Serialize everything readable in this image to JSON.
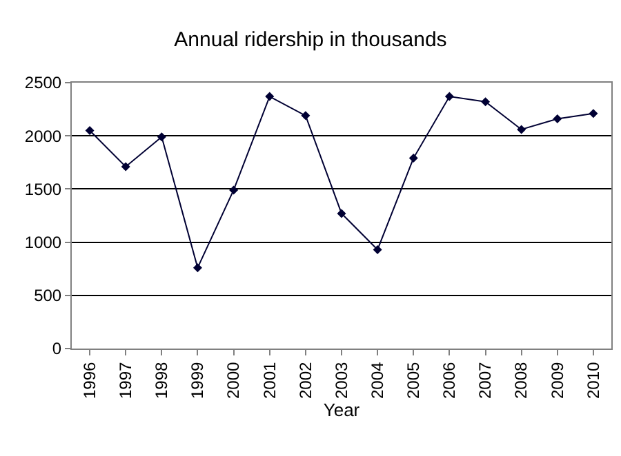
{
  "chart_data": {
    "type": "line",
    "title": "Annual ridership in thousands",
    "xlabel": "Year",
    "categories": [
      "1996",
      "1997",
      "1998",
      "1999",
      "2000",
      "2001",
      "2002",
      "2003",
      "2004",
      "2005",
      "2006",
      "2007",
      "2008",
      "2009",
      "2010"
    ],
    "series": [
      {
        "color": "#000033",
        "values": [
          2050,
          1710,
          1990,
          760,
          1490,
          2370,
          2190,
          1270,
          930,
          1790,
          2370,
          2320,
          2060,
          2160,
          2210
        ]
      }
    ],
    "ylim": [
      0,
      2500
    ],
    "yticks": [
      0,
      500,
      1000,
      1500,
      2000,
      2500
    ],
    "grid": "y",
    "legend": false,
    "marker": "diamond",
    "line_style": "solid"
  }
}
